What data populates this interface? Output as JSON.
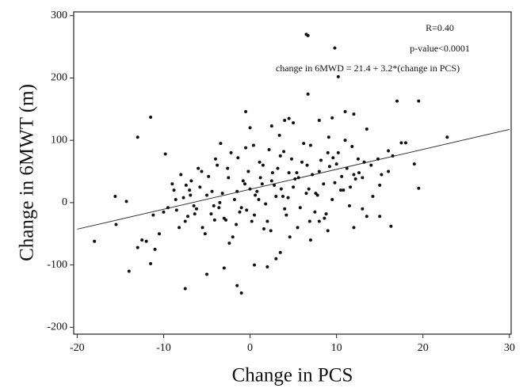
{
  "chart_data": {
    "type": "scatter",
    "x_label": "Change in PCS",
    "y_label": "Change in 6MWT (m)",
    "annotations": [
      "R=0.40",
      "p-value<0.0001",
      "change in 6MWD =  21.4 + 3.2*(change in PCS)"
    ],
    "xlim": [
      -20.4,
      30.2
    ],
    "ylim": [
      -211,
      306
    ],
    "xticks": [
      -20,
      -10,
      0,
      10,
      20,
      30
    ],
    "yticks": [
      -200,
      -100,
      0,
      100,
      200,
      300
    ],
    "color": "#111111",
    "fit_line": {
      "x": [
        -20,
        30
      ],
      "y": [
        -42.6,
        117.4
      ]
    },
    "x": [
      6.5,
      6.7,
      9.8,
      10.2,
      6.7,
      -11.5,
      -13,
      -9.8,
      -18,
      -15.5,
      -15.6,
      -14.3,
      -14,
      -13,
      -12,
      -11.5,
      -11.2,
      -10.5,
      -7.5,
      -5,
      -3,
      -1.5,
      -1,
      0.5,
      2,
      3,
      3.5,
      -0.5,
      0,
      2.5,
      4,
      4.5,
      5,
      8,
      9.5,
      11,
      12,
      13.5,
      17,
      19.5,
      22.8,
      19.5,
      19,
      17.5,
      18,
      16,
      16.3,
      15,
      13.5,
      13,
      12,
      9,
      8,
      7,
      -9,
      -8.5,
      -8,
      -7.5,
      -7,
      -6.5,
      -6,
      -5.5,
      -5,
      -4.5,
      -4,
      -3.5,
      -3,
      -2.5,
      -2,
      -1.5,
      -1,
      -0.5,
      0,
      0.5,
      1,
      1.5,
      2,
      2.5,
      3,
      3.5,
      4,
      4.5,
      5,
      5.5,
      6,
      6.5,
      7,
      7.5,
      8,
      8.5,
      9,
      9.5,
      10,
      10.5,
      11,
      11.5,
      12,
      12.5,
      13,
      14,
      15,
      16,
      -9.5,
      -8.8,
      -8.2,
      -7.7,
      -7.2,
      -6.8,
      -6.2,
      -5.8,
      -5.2,
      -4.8,
      -4.2,
      -3.8,
      -3.2,
      -2.8,
      -2.2,
      -1.8,
      -1.2,
      -0.8,
      -0.2,
      0.2,
      0.8,
      1.2,
      1.8,
      2.2,
      2.8,
      3.2,
      3.8,
      4.2,
      4.8,
      5.2,
      5.8,
      6.2,
      6.8,
      7.2,
      7.8,
      8.2,
      8.8,
      9.2,
      9.8,
      10.2,
      10.8,
      11.2,
      11.8,
      12.2,
      13.2,
      14.2,
      15.2,
      16.5,
      -8.6,
      -7.4,
      -6.4,
      -5.6,
      -4.4,
      -3.6,
      -2.6,
      -1.6,
      -0.6,
      0.6,
      1.6,
      2.6,
      3.6,
      4.6,
      5.6,
      6.6,
      7.6,
      8.6,
      9.6,
      10.6,
      11.6,
      12.6,
      -3.4,
      -2.4,
      -1.4,
      -0.4,
      0.4,
      1.4,
      2.4,
      3.4,
      4.4,
      5.4,
      -10,
      -12.5,
      -11,
      -6.9,
      -4.1,
      1.1,
      3.9,
      6.9,
      9.1,
      14.8
    ],
    "y": [
      270,
      268,
      248,
      202,
      174,
      137,
      105,
      78,
      -62,
      -35,
      10,
      2,
      -110,
      -72,
      -62,
      -98,
      -20,
      -50,
      -138,
      -115,
      -105,
      -133,
      -145,
      -100,
      -103,
      -90,
      -80,
      146,
      120,
      123,
      132,
      135,
      128,
      132,
      136,
      146,
      142,
      118,
      163,
      163,
      105,
      23,
      62,
      96,
      96,
      83,
      -38,
      -22,
      -22,
      -10,
      -40,
      -45,
      -30,
      -60,
      30,
      -12,
      45,
      -30,
      20,
      -5,
      55,
      -40,
      12,
      -18,
      70,
      0,
      -25,
      40,
      -55,
      18,
      -8,
      88,
      22,
      -20,
      5,
      60,
      -30,
      35,
      10,
      75,
      -10,
      48,
      25,
      -40,
      65,
      15,
      92,
      -15,
      50,
      30,
      80,
      5,
      62,
      20,
      100,
      -5,
      45,
      70,
      40,
      60,
      28,
      50,
      -8,
      20,
      -40,
      8,
      -22,
      35,
      -10,
      25,
      -50,
      42,
      -5,
      60,
      15,
      -28,
      80,
      5,
      -15,
      35,
      50,
      -30,
      18,
      40,
      -2,
      85,
      28,
      55,
      10,
      -20,
      70,
      38,
      -8,
      95,
      22,
      45,
      12,
      68,
      -18,
      58,
      32,
      80,
      20,
      55,
      90,
      38,
      65,
      10,
      45,
      75,
      5,
      28,
      -18,
      50,
      18,
      -8,
      55,
      -35,
      30,
      12,
      -42,
      48,
      22,
      -55,
      40,
      60,
      15,
      -25,
      72,
      42,
      25,
      48,
      95,
      -65,
      72,
      -12,
      92,
      30,
      -45,
      108,
      8,
      48,
      -15,
      -60,
      -75,
      12,
      -28,
      65,
      82,
      -30,
      105,
      70
    ],
    "size": 3
  }
}
